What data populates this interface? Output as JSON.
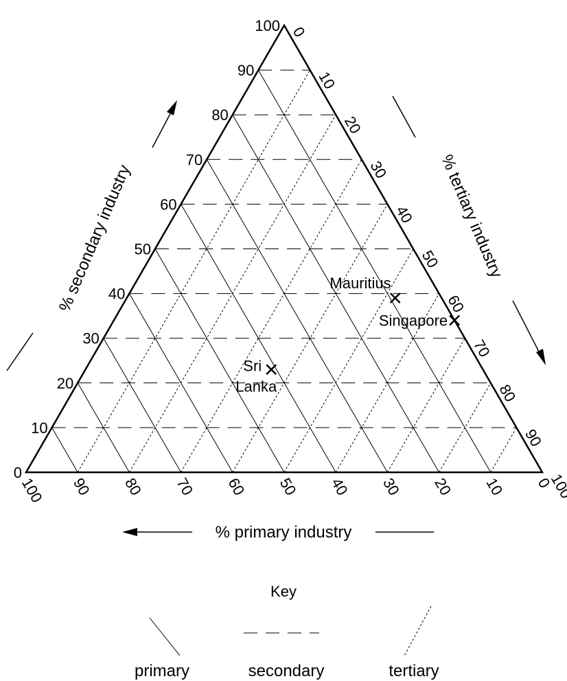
{
  "chart_data": {
    "type": "ternary-scatter",
    "axes": {
      "primary": {
        "label": "% primary industry",
        "ticks": [
          100,
          90,
          80,
          70,
          60,
          50,
          40,
          30,
          20,
          10,
          0
        ]
      },
      "secondary": {
        "label": "% secondary industry",
        "ticks": [
          0,
          10,
          20,
          30,
          40,
          50,
          60,
          70,
          80,
          90,
          100
        ]
      },
      "tertiary": {
        "label": "% tertiary industry",
        "ticks": [
          0,
          10,
          20,
          30,
          40,
          50,
          60,
          70,
          80,
          90,
          100
        ]
      }
    },
    "points": [
      {
        "name": "Mauritius",
        "primary": 9,
        "secondary": 39,
        "tertiary": 52
      },
      {
        "name": "Singapore",
        "primary": 0,
        "secondary": 34,
        "tertiary": 66
      },
      {
        "name": "Sri Lanka",
        "primary": 41,
        "secondary": 23,
        "tertiary": 36
      }
    ],
    "key": {
      "title": "Key",
      "items": [
        {
          "label": "primary",
          "style": "solid"
        },
        {
          "label": "secondary",
          "style": "dashed"
        },
        {
          "label": "tertiary",
          "style": "dotted"
        }
      ]
    }
  }
}
